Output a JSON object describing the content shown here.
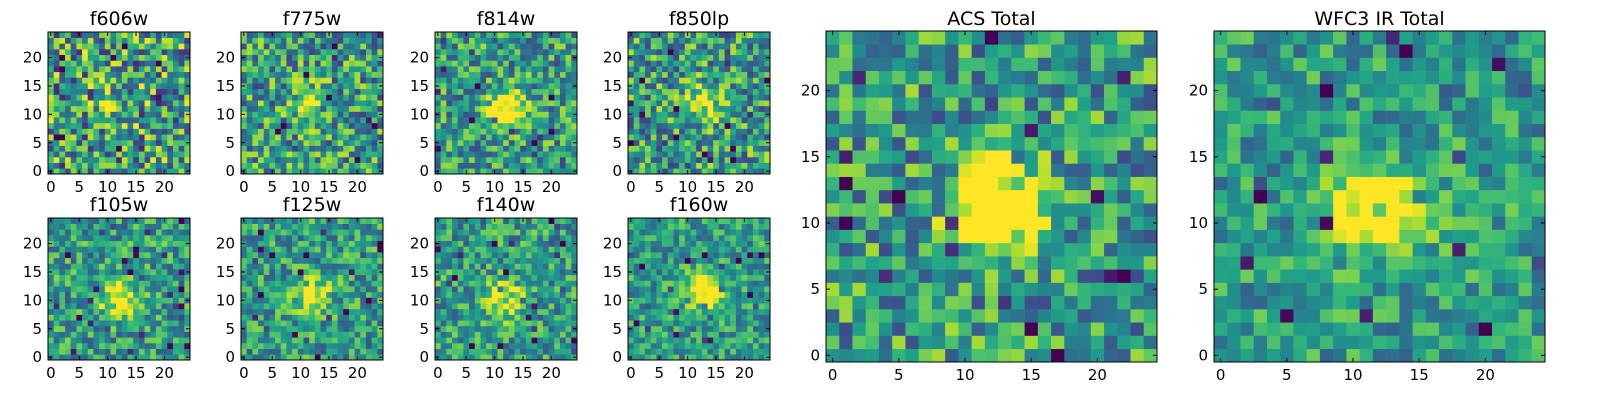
{
  "chart_data": [
    {
      "type": "heatmap",
      "title": "f606w",
      "size": 25,
      "xticks": [
        0,
        5,
        10,
        15,
        20
      ],
      "yticks": [
        0,
        5,
        10,
        15,
        20
      ],
      "source_center": [
        11.5,
        11.5
      ],
      "source_strength": 0.25,
      "noise": 0.55,
      "seed": 1
    },
    {
      "type": "heatmap",
      "title": "f775w",
      "size": 25,
      "xticks": [
        0,
        5,
        10,
        15,
        20
      ],
      "yticks": [
        0,
        5,
        10,
        15,
        20
      ],
      "source_center": [
        12,
        11.5
      ],
      "source_strength": 0.45,
      "noise": 0.45,
      "seed": 2
    },
    {
      "type": "heatmap",
      "title": "f814w",
      "size": 25,
      "xticks": [
        0,
        5,
        10,
        15,
        20
      ],
      "yticks": [
        0,
        5,
        10,
        15,
        20
      ],
      "source_center": [
        12,
        11
      ],
      "source_strength": 0.75,
      "noise": 0.4,
      "seed": 3
    },
    {
      "type": "heatmap",
      "title": "f850lp",
      "size": 25,
      "xticks": [
        0,
        5,
        10,
        15,
        20
      ],
      "yticks": [
        0,
        5,
        10,
        15,
        20
      ],
      "source_center": [
        12.5,
        12
      ],
      "source_strength": 0.45,
      "noise": 0.45,
      "seed": 4
    },
    {
      "type": "heatmap",
      "title": "f105w",
      "size": 25,
      "xticks": [
        0,
        5,
        10,
        15,
        20
      ],
      "yticks": [
        0,
        5,
        10,
        15,
        20
      ],
      "source_center": [
        12,
        10.5
      ],
      "source_strength": 0.55,
      "noise": 0.35,
      "seed": 5
    },
    {
      "type": "heatmap",
      "title": "f125w",
      "size": 25,
      "xticks": [
        0,
        5,
        10,
        15,
        20
      ],
      "yticks": [
        0,
        5,
        10,
        15,
        20
      ],
      "source_center": [
        12,
        11
      ],
      "source_strength": 0.55,
      "noise": 0.35,
      "seed": 6
    },
    {
      "type": "heatmap",
      "title": "f140w",
      "size": 25,
      "xticks": [
        0,
        5,
        10,
        15,
        20
      ],
      "yticks": [
        0,
        5,
        10,
        15,
        20
      ],
      "source_center": [
        11.5,
        10
      ],
      "source_strength": 0.5,
      "noise": 0.35,
      "seed": 7
    },
    {
      "type": "heatmap",
      "title": "f160w",
      "size": 25,
      "xticks": [
        0,
        5,
        10,
        15,
        20
      ],
      "yticks": [
        0,
        5,
        10,
        15,
        20
      ],
      "source_center": [
        13,
        12
      ],
      "source_strength": 0.7,
      "noise": 0.3,
      "seed": 8
    },
    {
      "type": "heatmap",
      "title": "ACS Total",
      "size": 25,
      "xticks": [
        0,
        5,
        10,
        15,
        20
      ],
      "yticks": [
        0,
        5,
        10,
        15,
        20
      ],
      "source_center": [
        12.5,
        11
      ],
      "source_strength": 0.9,
      "noise": 0.4,
      "seed": 9
    },
    {
      "type": "heatmap",
      "title": "WFC3 IR Total",
      "size": 25,
      "xticks": [
        0,
        5,
        10,
        15,
        20
      ],
      "yticks": [
        0,
        5,
        10,
        15,
        20
      ],
      "source_center": [
        12,
        11
      ],
      "source_strength": 0.8,
      "noise": 0.3,
      "seed": 10
    }
  ],
  "colors": {
    "colormap": "viridis",
    "frame": "#000000"
  }
}
